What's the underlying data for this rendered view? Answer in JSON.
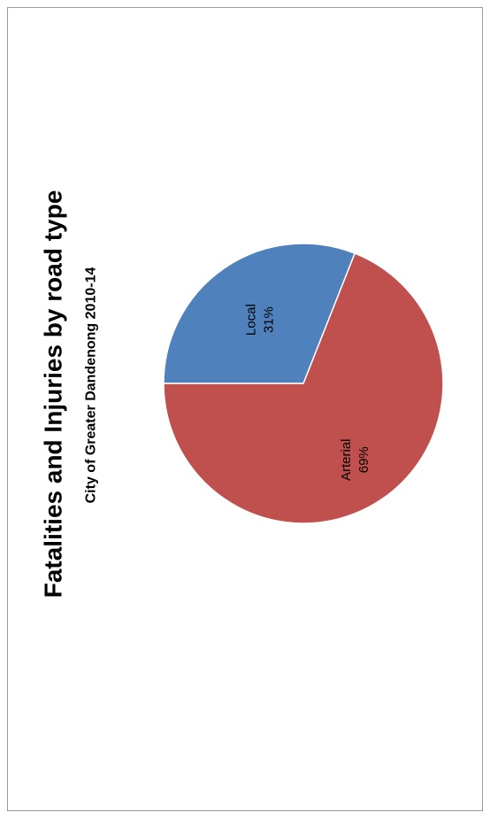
{
  "chart_data": {
    "type": "pie",
    "title": "Fatalities and Injuries by road type",
    "subtitle": "City of Greater Dandenong 2010-14",
    "categories": [
      "Local",
      "Arterial"
    ],
    "values": [
      31,
      69
    ],
    "value_labels": [
      "31%",
      "69%"
    ],
    "colors": [
      "#4f81bd",
      "#c0504d"
    ]
  }
}
